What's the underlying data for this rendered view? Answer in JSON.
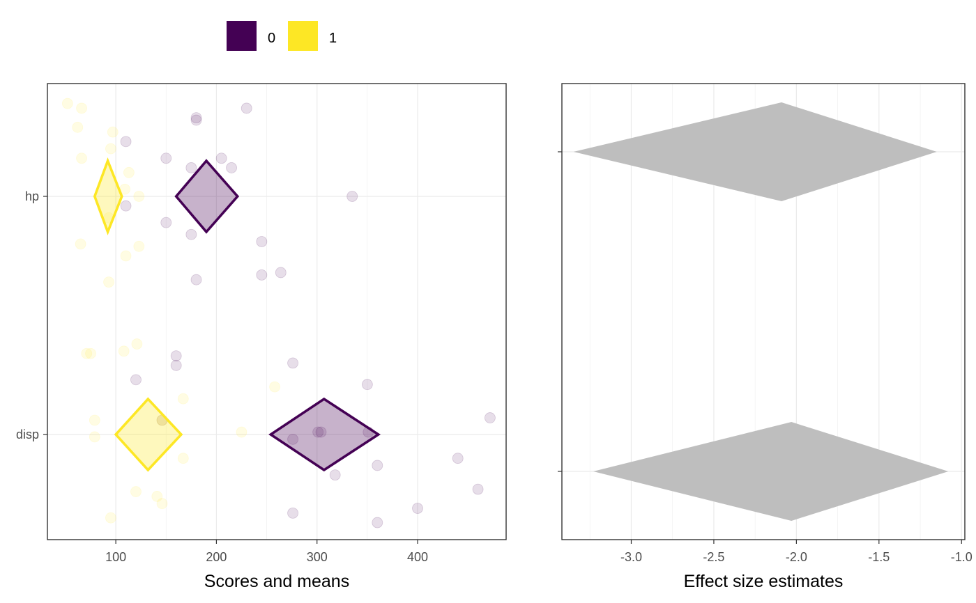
{
  "chart_data": [
    {
      "type": "scatter",
      "xlabel": "Scores and means",
      "ylabel": "",
      "xlim": [
        32,
        488
      ],
      "x_ticks": [
        100,
        200,
        300,
        400
      ],
      "x_tick_labels": [
        "100",
        "200",
        "300",
        "400"
      ],
      "categories": [
        "hp",
        "disp"
      ],
      "grid": true,
      "legend": {
        "placement": "top",
        "entries": [
          {
            "label": "0",
            "color": "#440154"
          },
          {
            "label": "1",
            "color": "#FDE725"
          }
        ]
      },
      "series": [
        {
          "name": "0",
          "color": "#440154",
          "points": [
            {
              "cat": "hp",
              "x": 180,
              "jitter": 0.32
            },
            {
              "cat": "hp",
              "x": 180,
              "jitter": 0.33
            },
            {
              "cat": "hp",
              "x": 230,
              "jitter": 0.37
            },
            {
              "cat": "hp",
              "x": 110,
              "jitter": 0.23
            },
            {
              "cat": "hp",
              "x": 150,
              "jitter": 0.16
            },
            {
              "cat": "hp",
              "x": 205,
              "jitter": 0.16
            },
            {
              "cat": "hp",
              "x": 175,
              "jitter": 0.12
            },
            {
              "cat": "hp",
              "x": 215,
              "jitter": 0.12
            },
            {
              "cat": "hp",
              "x": 335,
              "jitter": 0.0
            },
            {
              "cat": "hp",
              "x": 110,
              "jitter": -0.04
            },
            {
              "cat": "hp",
              "x": 150,
              "jitter": -0.11
            },
            {
              "cat": "hp",
              "x": 175,
              "jitter": -0.16
            },
            {
              "cat": "hp",
              "x": 245,
              "jitter": -0.19
            },
            {
              "cat": "hp",
              "x": 264,
              "jitter": -0.32
            },
            {
              "cat": "hp",
              "x": 245,
              "jitter": -0.33
            },
            {
              "cat": "hp",
              "x": 180,
              "jitter": -0.35
            },
            {
              "cat": "disp",
              "x": 276,
              "jitter": 0.3
            },
            {
              "cat": "disp",
              "x": 160,
              "jitter": 0.33
            },
            {
              "cat": "disp",
              "x": 160,
              "jitter": 0.29
            },
            {
              "cat": "disp",
              "x": 120,
              "jitter": 0.23
            },
            {
              "cat": "disp",
              "x": 350,
              "jitter": 0.21
            },
            {
              "cat": "disp",
              "x": 472,
              "jitter": 0.07
            },
            {
              "cat": "disp",
              "x": 304,
              "jitter": 0.01
            },
            {
              "cat": "disp",
              "x": 301,
              "jitter": 0.01
            },
            {
              "cat": "disp",
              "x": 351,
              "jitter": 0.01
            },
            {
              "cat": "disp",
              "x": 276,
              "jitter": -0.02
            },
            {
              "cat": "disp",
              "x": 440,
              "jitter": -0.1
            },
            {
              "cat": "disp",
              "x": 360,
              "jitter": -0.13
            },
            {
              "cat": "disp",
              "x": 318,
              "jitter": -0.17
            },
            {
              "cat": "disp",
              "x": 460,
              "jitter": -0.23
            },
            {
              "cat": "disp",
              "x": 400,
              "jitter": -0.31
            },
            {
              "cat": "disp",
              "x": 276,
              "jitter": -0.33
            },
            {
              "cat": "disp",
              "x": 360,
              "jitter": -0.37
            },
            {
              "cat": "disp",
              "x": 146,
              "jitter": 0.06
            }
          ],
          "means": [
            {
              "cat": "hp",
              "mean": 190,
              "lo": 160,
              "hi": 221
            },
            {
              "cat": "disp",
              "mean": 307,
              "lo": 254,
              "hi": 361
            }
          ]
        },
        {
          "name": "1",
          "color": "#FDE725",
          "points": [
            {
              "cat": "hp",
              "x": 52,
              "jitter": 0.39
            },
            {
              "cat": "hp",
              "x": 66,
              "jitter": 0.37
            },
            {
              "cat": "hp",
              "x": 62,
              "jitter": 0.29
            },
            {
              "cat": "hp",
              "x": 97,
              "jitter": 0.27
            },
            {
              "cat": "hp",
              "x": 95,
              "jitter": 0.2
            },
            {
              "cat": "hp",
              "x": 66,
              "jitter": 0.16
            },
            {
              "cat": "hp",
              "x": 113,
              "jitter": 0.1
            },
            {
              "cat": "hp",
              "x": 109,
              "jitter": 0.03
            },
            {
              "cat": "hp",
              "x": 123,
              "jitter": 0.0
            },
            {
              "cat": "hp",
              "x": 93,
              "jitter": -0.09
            },
            {
              "cat": "hp",
              "x": 65,
              "jitter": -0.2
            },
            {
              "cat": "hp",
              "x": 123,
              "jitter": -0.21
            },
            {
              "cat": "hp",
              "x": 110,
              "jitter": -0.25
            },
            {
              "cat": "hp",
              "x": 93,
              "jitter": -0.36
            },
            {
              "cat": "disp",
              "x": 121,
              "jitter": 0.38
            },
            {
              "cat": "disp",
              "x": 108,
              "jitter": 0.35
            },
            {
              "cat": "disp",
              "x": 71,
              "jitter": 0.34
            },
            {
              "cat": "disp",
              "x": 75,
              "jitter": 0.34
            },
            {
              "cat": "disp",
              "x": 258,
              "jitter": 0.2
            },
            {
              "cat": "disp",
              "x": 167,
              "jitter": 0.15
            },
            {
              "cat": "disp",
              "x": 79,
              "jitter": 0.06
            },
            {
              "cat": "disp",
              "x": 146,
              "jitter": 0.06
            },
            {
              "cat": "disp",
              "x": 225,
              "jitter": 0.01
            },
            {
              "cat": "disp",
              "x": 79,
              "jitter": -0.01
            },
            {
              "cat": "disp",
              "x": 167,
              "jitter": -0.1
            },
            {
              "cat": "disp",
              "x": 120,
              "jitter": -0.24
            },
            {
              "cat": "disp",
              "x": 141,
              "jitter": -0.26
            },
            {
              "cat": "disp",
              "x": 146,
              "jitter": -0.29
            },
            {
              "cat": "disp",
              "x": 95,
              "jitter": -0.35
            }
          ],
          "means": [
            {
              "cat": "hp",
              "mean": 92,
              "lo": 79,
              "hi": 106
            },
            {
              "cat": "disp",
              "mean": 132,
              "lo": 100,
              "hi": 165
            }
          ]
        }
      ]
    },
    {
      "type": "scatter",
      "xlabel": "Effect size estimates",
      "ylabel": "",
      "xlim": [
        -3.42,
        -0.98
      ],
      "x_ticks": [
        -3.0,
        -2.5,
        -2.0,
        -1.5,
        -1.0
      ],
      "x_tick_labels": [
        "-3.0",
        "-2.5",
        "-2.0",
        "-1.5",
        "-1.0"
      ],
      "categories": [
        "hp",
        "disp"
      ],
      "grid": true,
      "fill": "#BEBEBE",
      "estimates": [
        {
          "cat": "hp",
          "estimate": -2.09,
          "lo": -3.35,
          "hi": -1.15
        },
        {
          "cat": "disp",
          "estimate": -2.03,
          "lo": -3.23,
          "hi": -1.08
        }
      ]
    }
  ]
}
